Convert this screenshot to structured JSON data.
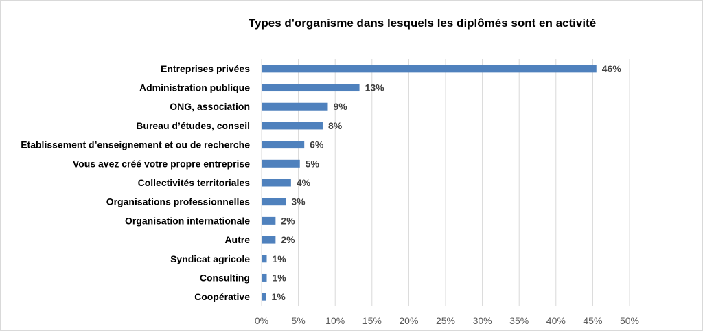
{
  "chart_data": {
    "type": "bar",
    "orientation": "horizontal",
    "title": "Types d'organisme dans lesquels les diplômés sont en activité",
    "categories": [
      "Entreprises privées",
      "Administration publique",
      "ONG, association",
      "Bureau d’études, conseil",
      "Etablissement d’enseignement et ou de recherche",
      "Vous avez créé votre propre entreprise",
      "Collectivités territoriales",
      "Organisations professionnelles",
      "Organisation internationale",
      "Autre",
      "Syndicat agricole",
      "Consulting",
      "Coopérative"
    ],
    "values": [
      45.5,
      13.3,
      9.0,
      8.3,
      5.8,
      5.2,
      4.0,
      3.3,
      1.9,
      1.9,
      0.7,
      0.7,
      0.6
    ],
    "data_labels": [
      "46%",
      "13%",
      "9%",
      "8%",
      "6%",
      "5%",
      "4%",
      "3%",
      "2%",
      "2%",
      "1%",
      "1%",
      "1%"
    ],
    "xlim": [
      0,
      50
    ],
    "x_ticks": [
      "0%",
      "5%",
      "10%",
      "15%",
      "20%",
      "25%",
      "30%",
      "35%",
      "40%",
      "45%",
      "50%"
    ],
    "grid": true,
    "bar_color": "#4f81bd"
  }
}
